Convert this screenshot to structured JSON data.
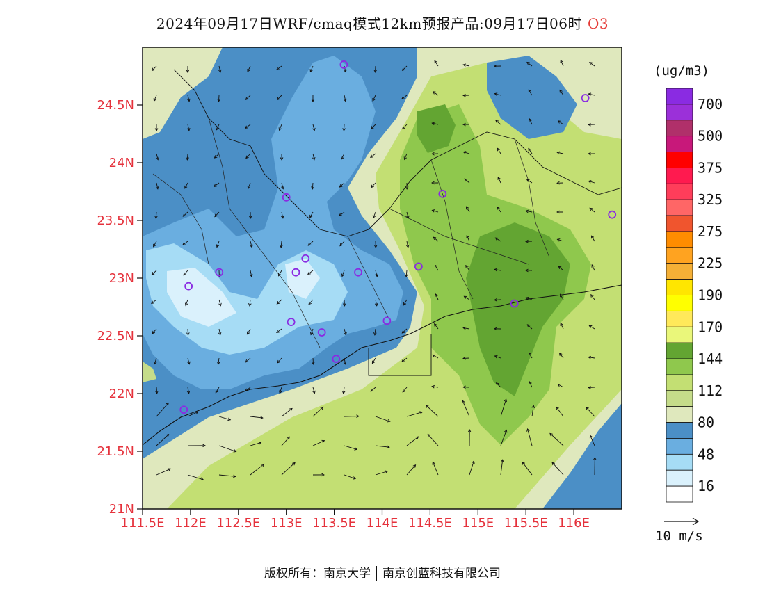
{
  "title": {
    "text": "2024年09月17日WRF/cmaq模式12km预报产品:09月17日06时",
    "species": "O3"
  },
  "axes": {
    "lat_ticks": [
      "24.5N",
      "24N",
      "23.5N",
      "23N",
      "22.5N",
      "22N",
      "21.5N",
      "21N"
    ],
    "lon_ticks": [
      "111.5E",
      "112E",
      "112.5E",
      "113E",
      "113.5E",
      "114E",
      "114.5E",
      "115E",
      "115.5E",
      "116E"
    ],
    "lat_range": [
      21,
      25
    ],
    "lon_range": [
      111.5,
      116.5
    ]
  },
  "legend": {
    "unit": "(ug/m3)",
    "levels": [
      "700",
      "500",
      "375",
      "325",
      "275",
      "225",
      "190",
      "170",
      "144",
      "112",
      "80",
      "48",
      "16"
    ],
    "colors": [
      "#8a2be2",
      "#9b30d9",
      "#b0306a",
      "#c8187a",
      "#ff0000",
      "#ff1a4f",
      "#ff3d5a",
      "#ff6666",
      "#f0552e",
      "#ff8c00",
      "#ffa320",
      "#f5b036",
      "#ffe600",
      "#ffff00",
      "#ffe95a",
      "#eaf77a",
      "#63a532",
      "#8fc84d",
      "#c3df73",
      "#c5dc8a",
      "#dfe8bd",
      "#4b8fc6",
      "#6aaee0",
      "#a6dcf5",
      "#daf1fc",
      "#ffffff"
    ]
  },
  "wind_scale": {
    "label": "10 m/s"
  },
  "stations": [
    {
      "lon": 113.6,
      "lat": 24.85
    },
    {
      "lon": 113.0,
      "lat": 23.7
    },
    {
      "lon": 112.3,
      "lat": 23.05
    },
    {
      "lon": 111.98,
      "lat": 22.93
    },
    {
      "lon": 113.1,
      "lat": 23.05
    },
    {
      "lon": 113.2,
      "lat": 23.17
    },
    {
      "lon": 113.75,
      "lat": 23.05
    },
    {
      "lon": 114.38,
      "lat": 23.1
    },
    {
      "lon": 114.63,
      "lat": 23.73
    },
    {
      "lon": 113.05,
      "lat": 22.62
    },
    {
      "lon": 113.37,
      "lat": 22.53
    },
    {
      "lon": 113.52,
      "lat": 22.3
    },
    {
      "lon": 114.05,
      "lat": 22.63
    },
    {
      "lon": 115.38,
      "lat": 22.78
    },
    {
      "lon": 111.93,
      "lat": 21.86
    },
    {
      "lon": 116.12,
      "lat": 24.56
    },
    {
      "lon": 116.4,
      "lat": 23.55
    }
  ],
  "footer": {
    "left": "版权所有：南京大学",
    "right": "南京创蓝科技有限公司"
  }
}
